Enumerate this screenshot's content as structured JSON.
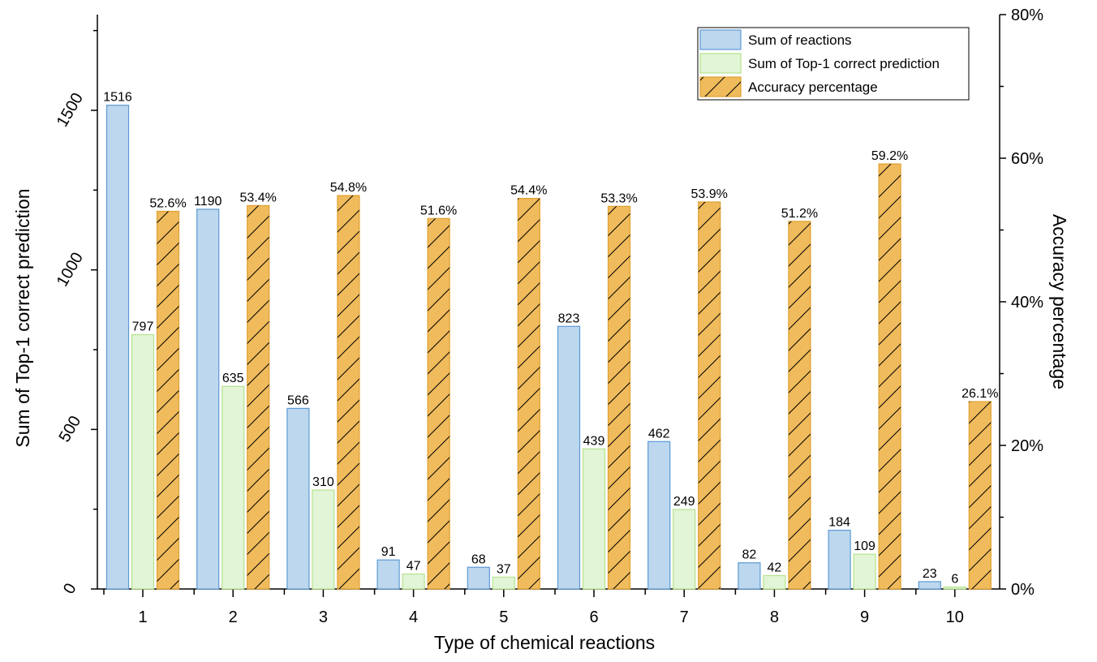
{
  "chart_data": {
    "type": "bar",
    "xlabel": "Type of chemical reactions",
    "ylabel": "Sum of Top-1 correct prediction",
    "y2label": "Accuracy percentage",
    "categories": [
      "1",
      "2",
      "3",
      "4",
      "5",
      "6",
      "7",
      "8",
      "9",
      "10"
    ],
    "ylim": [
      0,
      1800
    ],
    "y2lim": [
      0,
      80
    ],
    "yticks": [
      0,
      500,
      1000,
      1500
    ],
    "y2ticks": [
      0,
      20,
      40,
      60,
      80
    ],
    "y2tick_labels": [
      "0%",
      "20%",
      "40%",
      "60%",
      "80%"
    ],
    "legend_position": "top-right",
    "grid": false,
    "series": [
      {
        "name": "Sum of reactions",
        "axis": "left",
        "color": "#bdd7ee",
        "edge": "#5b9bd5",
        "values": [
          1516,
          1190,
          566,
          91,
          68,
          823,
          462,
          82,
          184,
          23
        ],
        "labels": [
          "1516",
          "1190",
          "566",
          "91",
          "68",
          "823",
          "462",
          "82",
          "184",
          "23"
        ]
      },
      {
        "name": "Sum of Top-1 correct prediction",
        "axis": "left",
        "color": "#e2f5d6",
        "edge": "#b5e28c",
        "values": [
          797,
          635,
          310,
          47,
          37,
          439,
          249,
          42,
          109,
          6
        ],
        "labels": [
          "797",
          "635",
          "310",
          "47",
          "37",
          "439",
          "249",
          "42",
          "109",
          "6"
        ]
      },
      {
        "name": "Accuracy percentage",
        "axis": "right",
        "color": "#f0bb5c",
        "edge": "#e0a030",
        "hatch": true,
        "values": [
          52.6,
          53.4,
          54.8,
          51.6,
          54.4,
          53.3,
          53.9,
          51.2,
          59.2,
          26.1
        ],
        "labels": [
          "52.6%",
          "53.4%",
          "54.8%",
          "51.6%",
          "54.4%",
          "53.3%",
          "53.9%",
          "51.2%",
          "59.2%",
          "26.1%"
        ]
      }
    ]
  }
}
